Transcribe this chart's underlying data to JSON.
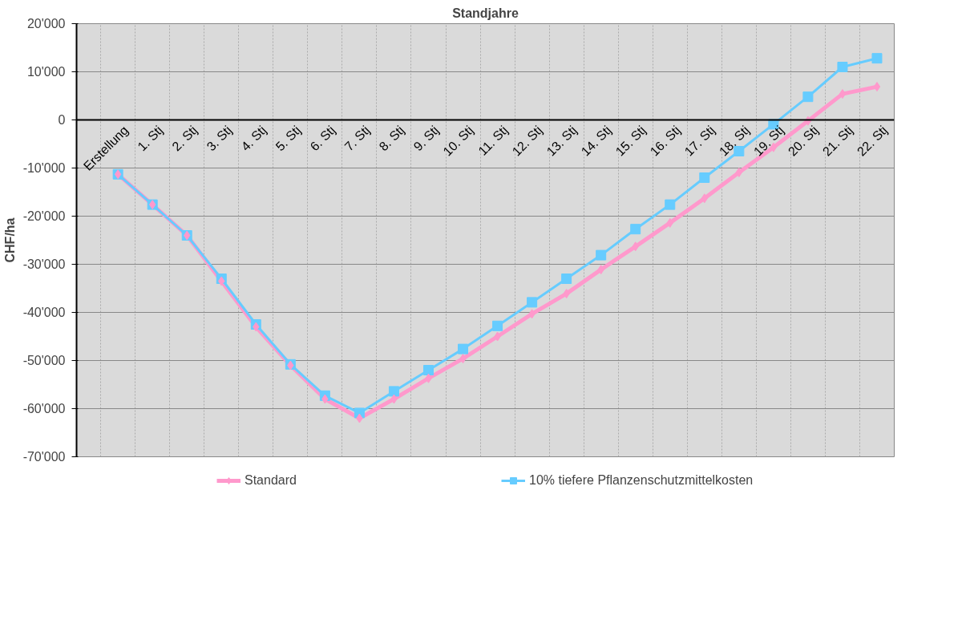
{
  "chart_data": {
    "type": "line",
    "title": "Standjahre",
    "ylabel": "CHF/ha",
    "categories": [
      "Erstellung",
      "1. Stj",
      "2. Stj",
      "3. Stj",
      "4. Stj",
      "5. Stj",
      "6. Stj",
      "7. Stj",
      "8. Stj",
      "9. Stj",
      "10. Stj",
      "11. Stj",
      "12. Stj",
      "13. Stj",
      "14. Stj",
      "15. Stj",
      "16. Stj",
      "17. Stj",
      "18. Stj",
      "19. Stj",
      "20. Stj",
      "21. Stj",
      "22. Stj"
    ],
    "series": [
      {
        "name": "Standard",
        "color": "#ff99cc",
        "marker": "diamond",
        "values": [
          -11300,
          -17600,
          -24000,
          -33500,
          -43000,
          -51000,
          -58000,
          -62000,
          -58000,
          -53700,
          -49600,
          -45000,
          -40300,
          -36100,
          -31100,
          -26300,
          -21400,
          -16300,
          -10900,
          -5700,
          -200,
          5400,
          6900
        ]
      },
      {
        "name": "10% tiefere Pflanzenschutzmittelkosten",
        "color": "#66ccff",
        "marker": "square",
        "values": [
          -11300,
          -17600,
          -24000,
          -33000,
          -42500,
          -50800,
          -57300,
          -60900,
          -56400,
          -52000,
          -47600,
          -42800,
          -37900,
          -33000,
          -28100,
          -22700,
          -17600,
          -12000,
          -6500,
          -900,
          4800,
          11000,
          12800
        ]
      }
    ],
    "ylim": [
      -70000,
      20000
    ],
    "yticks": [
      {
        "value": 20000,
        "label": "20'000"
      },
      {
        "value": 10000,
        "label": "10'000"
      },
      {
        "value": 0,
        "label": "0"
      },
      {
        "value": -10000,
        "label": "-10'000"
      },
      {
        "value": -20000,
        "label": "-20'000"
      },
      {
        "value": -30000,
        "label": "-30'000"
      },
      {
        "value": -40000,
        "label": "-40'000"
      },
      {
        "value": -50000,
        "label": "-50'000"
      },
      {
        "value": -60000,
        "label": "-60'000"
      },
      {
        "value": -70000,
        "label": "-70'000"
      }
    ],
    "grid": true,
    "legend": "bottom",
    "line_style": "solid"
  }
}
